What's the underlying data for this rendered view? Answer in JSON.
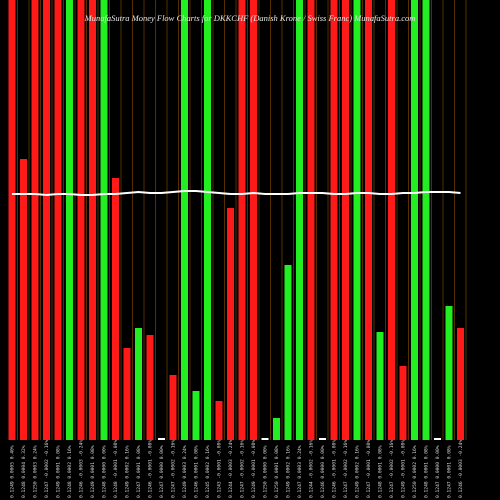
{
  "chart_data": {
    "type": "bar",
    "title": "MunafaSutra Money Flow Charts for DKKCHF (Danish Krone / Swiss Franc) MunafaSutra.com",
    "categories": [
      "0.1249 0.0005 0.40%",
      "0.1248 0.0004 0.32%",
      "0.1250 0.0003 0.24%",
      "0.1247 -0.0002 -0.16%",
      "0.1249 0.0001 0.08%",
      "0.1248 0.0002 0.16%",
      "0.1246 -0.0003 -0.24%",
      "0.1249 0.0001 0.08%",
      "0.1248 0.0000 0.00%",
      "0.1248 -0.0001 -0.08%",
      "0.1249 0.0002 0.16%",
      "0.1247 0.0001 0.08%",
      "0.1246 -0.0001 -0.08%",
      "0.1247 0.0000 0.00%",
      "0.1247 -0.0002 -0.16%",
      "0.1249 0.0003 0.24%",
      "0.1246 0.0001 0.08%",
      "0.1245 0.0002 0.16%",
      "0.1243 -0.0001 -0.08%",
      "0.1244 -0.0003 -0.24%",
      "0.1247 -0.0002 -0.16%",
      "0.1249 -0.0001 -0.08%",
      "0.1250 0.0000 0.00%",
      "0.1250 0.0001 0.08%",
      "0.1249 0.0002 0.16%",
      "0.1247 0.0003 0.24%",
      "0.1244 -0.0002 -0.16%",
      "0.1246 0.0000 0.00%",
      "0.1246 -0.0001 -0.08%",
      "0.1247 -0.0002 -0.16%",
      "0.1249 0.0002 0.16%",
      "0.1247 -0.0001 -0.08%",
      "0.1248 0.0001 0.08%",
      "0.1247 -0.0002 -0.16%",
      "0.1249 -0.0001 -0.08%",
      "0.1250 0.0002 0.16%",
      "0.1248 0.0001 0.08%",
      "0.1247 0.0000 0.00%",
      "0.1247 0.0001 0.08%",
      "0.1246 -0.0003 -0.24%"
    ],
    "series": [
      {
        "values": [
          440,
          281,
          440,
          440,
          440,
          440,
          440,
          440,
          440,
          262,
          92,
          112,
          105,
          2,
          65,
          440,
          49,
          440,
          39,
          232,
          440,
          440,
          2,
          22,
          175,
          440,
          440,
          2,
          440,
          440,
          440,
          440,
          108,
          440,
          74,
          440,
          440,
          2,
          134,
          112
        ],
        "colors": [
          "#ff1a1a",
          "#ff1a1a",
          "#ff1a1a",
          "#ff1a1a",
          "#ff1a1a",
          "#22ee22",
          "#ff1a1a",
          "#ff1a1a",
          "#22ee22",
          "#ff1a1a",
          "#ff1a1a",
          "#22ee22",
          "#ff1a1a",
          "#ffffff",
          "#ff1a1a",
          "#22ee22",
          "#22ee22",
          "#22ee22",
          "#ff1a1a",
          "#ff1a1a",
          "#ff1a1a",
          "#ff1a1a",
          "#ffffff",
          "#22ee22",
          "#22ee22",
          "#22ee22",
          "#ff1a1a",
          "#ffffff",
          "#ff1a1a",
          "#ff1a1a",
          "#22ee22",
          "#ff1a1a",
          "#22ee22",
          "#ff1a1a",
          "#ff1a1a",
          "#22ee22",
          "#22ee22",
          "#ffffff",
          "#22ee22",
          "#ff1a1a"
        ]
      },
      {
        "type": "line",
        "color": "#ffffff",
        "values": [
          246,
          246,
          246,
          245,
          246,
          246,
          245,
          245,
          246,
          246,
          247,
          248,
          247,
          247,
          248,
          249,
          249,
          248,
          247,
          246,
          246,
          247,
          246,
          246,
          246,
          247,
          247,
          247,
          246,
          246,
          247,
          247,
          246,
          246,
          247,
          247,
          248,
          248,
          248,
          247
        ]
      }
    ],
    "ylim": [
      0,
      440
    ]
  }
}
